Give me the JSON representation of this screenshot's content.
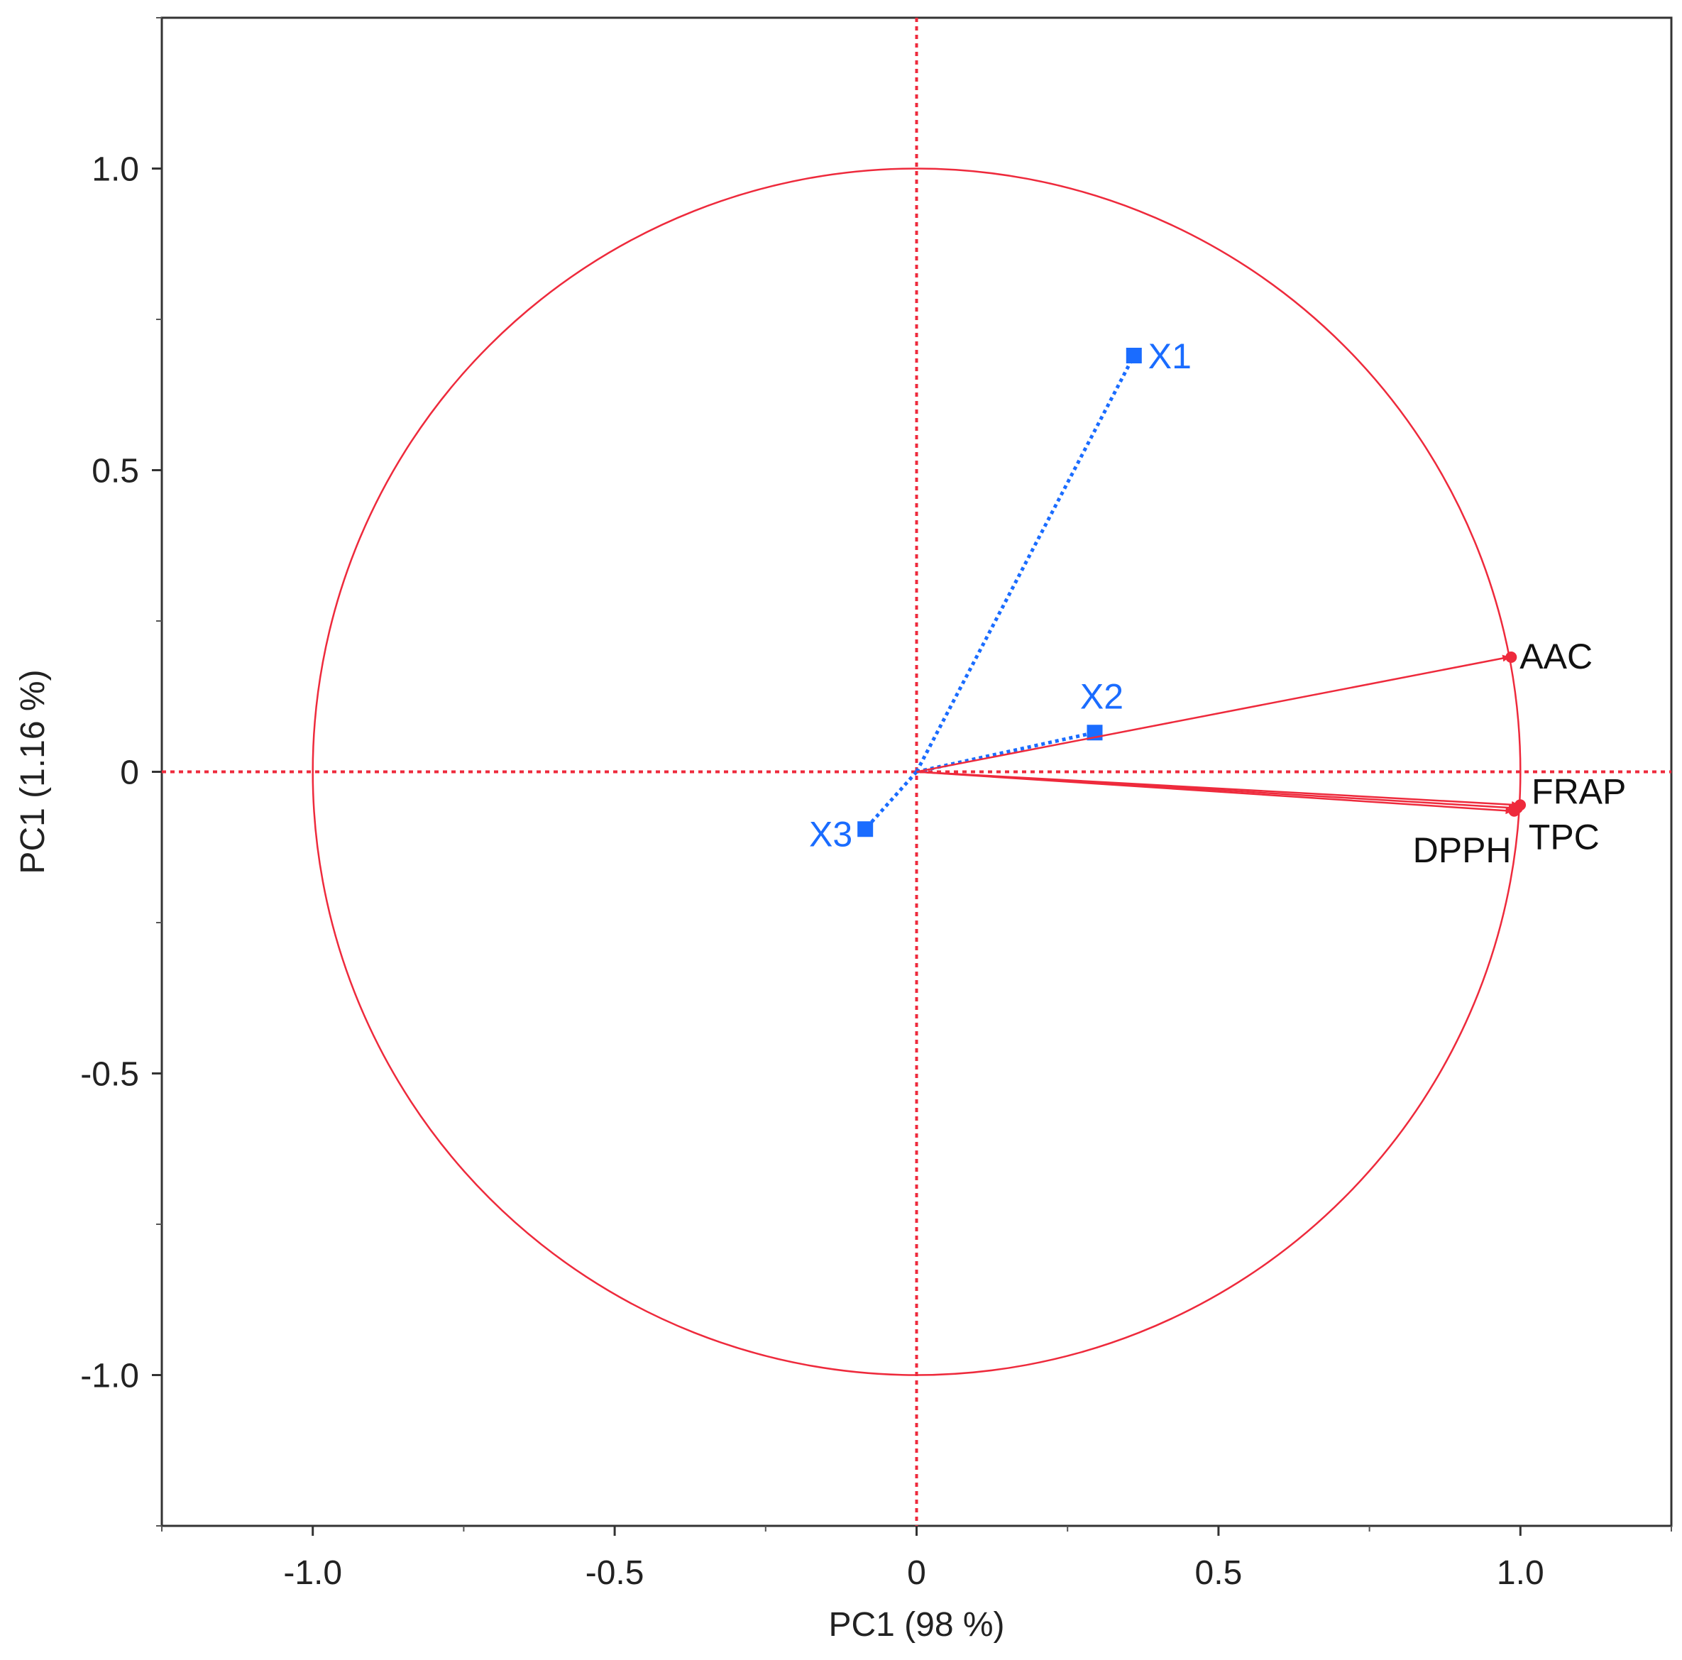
{
  "chart_data": {
    "type": "scatter",
    "title": "",
    "xlabel": "PC1  (98 %)",
    "ylabel": "PC1  (1.16 %)",
    "xlim": [
      -1.25,
      1.25
    ],
    "ylim": [
      -1.25,
      1.25
    ],
    "x_ticks": [
      -1.0,
      -0.5,
      0,
      0.5,
      1.0
    ],
    "x_tick_labels": [
      "-1.0",
      "-0.5",
      "0",
      "0.5",
      "1.0"
    ],
    "y_ticks": [
      -1.0,
      -0.5,
      0,
      0.5,
      1.0
    ],
    "y_tick_labels": [
      "-1.0",
      "-0.5",
      "0",
      "0.5",
      "1.0"
    ],
    "minor_ticks": [
      -1.25,
      -0.75,
      -0.25,
      0.25,
      0.75,
      1.25
    ],
    "grid": false,
    "unit_circle": true,
    "reference_lines": {
      "x": 0,
      "y": 0,
      "style": "dotted"
    },
    "series": [
      {
        "style": "dotted",
        "marker": "square",
        "color": "#1a6cff",
        "points": [
          {
            "label": "X1",
            "x": 0.36,
            "y": 0.69
          },
          {
            "label": "X2",
            "x": 0.295,
            "y": 0.065
          },
          {
            "label": "X3",
            "x": -0.085,
            "y": -0.095
          }
        ]
      },
      {
        "style": "solid",
        "marker": "arrow",
        "color": "#ee2a3c",
        "points": [
          {
            "label": "AAC",
            "x": 0.98,
            "y": 0.19
          },
          {
            "label": "FRAP",
            "x": 0.995,
            "y": -0.055
          },
          {
            "label": "TPC",
            "x": 0.99,
            "y": -0.06
          },
          {
            "label": "DPPH",
            "x": 0.985,
            "y": -0.065
          }
        ]
      }
    ]
  }
}
